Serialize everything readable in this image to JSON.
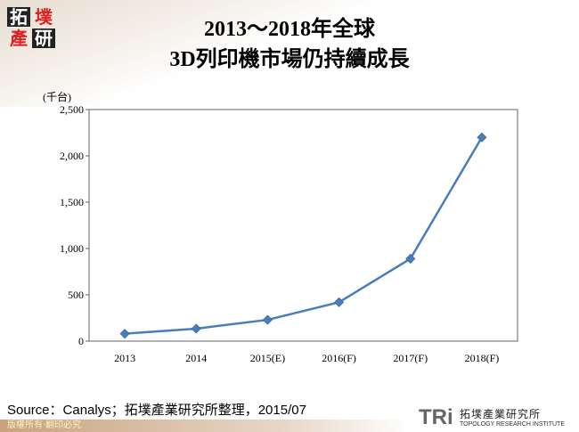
{
  "header": {
    "title_line1": "2013～2018年全球",
    "title_line2": "3D列印機市場仍持續成長",
    "logo_text": "拓墣產研"
  },
  "chart_data": {
    "type": "line",
    "title": "2013～2018年全球 3D列印機市場仍持續成長",
    "ylabel": "(千台)",
    "xlabel": "",
    "categories": [
      "2013",
      "2014",
      "2015(E)",
      "2016(F)",
      "2017(F)",
      "2018(F)"
    ],
    "values": [
      80,
      135,
      230,
      420,
      890,
      2200
    ],
    "ylim": [
      0,
      2500
    ],
    "yticks": [
      0,
      500,
      1000,
      1500,
      2000,
      2500
    ],
    "ytick_labels": [
      "0",
      "500",
      "1,000",
      "1,500",
      "2,000",
      "2,500"
    ],
    "grid": false,
    "marker": "diamond",
    "color": "#4a7ebb"
  },
  "footer": {
    "source": "Source：Canalys；拓墣產業研究所整理，2015/07",
    "copyright": "版權所有‧翻印必究",
    "brand_mark": "TRi",
    "brand_cn": "拓墣產業研究所",
    "brand_en": "TOPOLOGY RESEARCH INSTITUTE"
  }
}
